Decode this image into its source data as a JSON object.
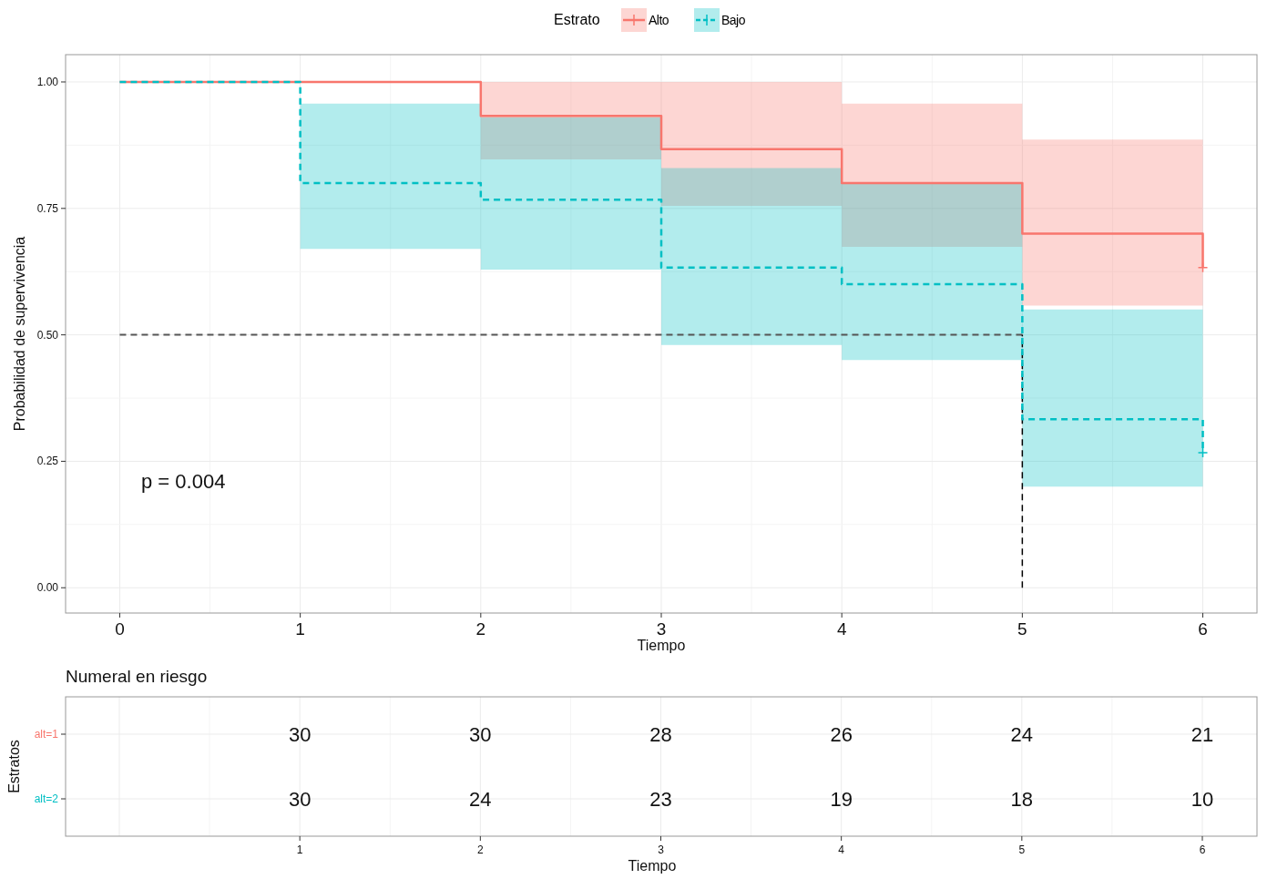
{
  "chart_data": [
    {
      "type": "step",
      "xlabel": "Tiempo",
      "ylabel": "Probabilidad de supervivencia",
      "legend_title": "Estrato",
      "legend": "top",
      "grid": true,
      "xlim": [
        -0.3,
        6.3
      ],
      "ylim": [
        -0.05,
        1.054
      ],
      "xticks": [
        0,
        1,
        2,
        3,
        4,
        5,
        6
      ],
      "yticks": [
        {
          "value": 0,
          "label": "0.00"
        },
        {
          "value": 0.25,
          "label": "0.25"
        },
        {
          "value": 0.5,
          "label": "0.50"
        },
        {
          "value": 0.75,
          "label": "0.75"
        },
        {
          "value": 1,
          "label": "1.00"
        }
      ],
      "annotations": [
        "p = 0.004"
      ],
      "ref_lines": [
        {
          "axis": "y",
          "value": 0.5,
          "color": "#555555",
          "line_style": "dashed"
        },
        {
          "axis": "x",
          "value": 5,
          "color": "#000000",
          "line_style": "dashed"
        }
      ],
      "series": [
        {
          "name": "Alto",
          "color": "#f8766d",
          "line_style": "solid",
          "x": [
            0,
            2,
            3,
            4,
            5,
            6
          ],
          "values": [
            1,
            0.933,
            0.867,
            0.8,
            0.7,
            0.633
          ],
          "lower": [
            1,
            0.847,
            0.755,
            0.674,
            0.558,
            0.558
          ],
          "upper": [
            1,
            1,
            1,
            0.957,
            0.886,
            0.886
          ]
        },
        {
          "name": "Bajo",
          "color": "#00bfc4",
          "line_style": "dashed",
          "x": [
            0,
            1,
            2,
            3,
            4,
            5,
            6
          ],
          "values": [
            1,
            0.8,
            0.767,
            0.633,
            0.6,
            0.333,
            0.267
          ],
          "lower": [
            1,
            0.67,
            0.629,
            0.48,
            0.45,
            0.2,
            0.2
          ],
          "upper": [
            1,
            0.957,
            0.93,
            0.83,
            0.8,
            0.55,
            0.55
          ]
        },
        {
          "type": "scatter",
          "marker": "cross",
          "color": "#f8766d",
          "x": [
            6
          ],
          "values": [
            0.633
          ]
        },
        {
          "type": "scatter",
          "marker": "cross",
          "color": "#00bfc4",
          "x": [
            6
          ],
          "values": [
            0.267
          ]
        }
      ]
    },
    {
      "type": "heatmap",
      "title": "Numeral en riesgo",
      "xlabel": "Tiempo",
      "ylabel": "Estratos",
      "categories": [
        null,
        "1",
        "2",
        "3",
        "4",
        "5",
        "6"
      ],
      "y_categories": [
        "alt=1",
        "alt=2"
      ],
      "colors": [
        "#f8766d",
        "#00bfc4"
      ],
      "grid": true,
      "data_labels": true,
      "cells": [
        [
          null,
          30,
          30,
          28,
          26,
          24,
          21
        ],
        [
          null,
          30,
          24,
          23,
          19,
          18,
          10
        ]
      ]
    }
  ]
}
